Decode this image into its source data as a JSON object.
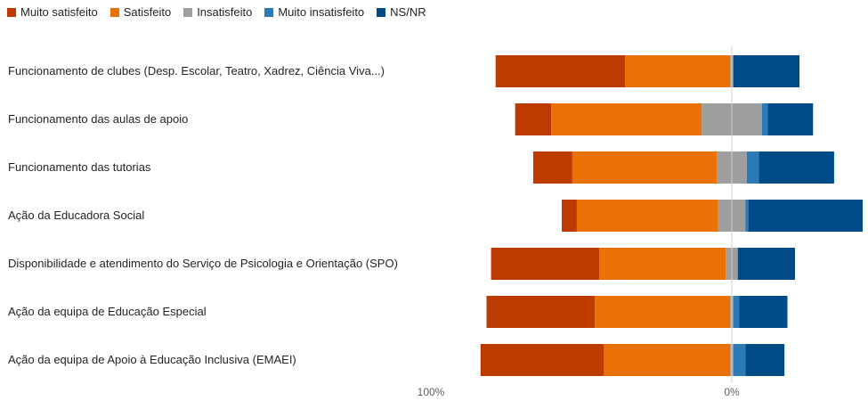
{
  "chart_data": {
    "type": "bar",
    "orientation": "horizontal-diverging-stacked",
    "legend_position": "top-left",
    "grid": false,
    "categories": [
      "Funcionamento de clubes (Desp. Escolar, Teatro, Xadrez, Ciência Viva...)",
      "Funcionamento das aulas de apoio",
      "Funcionamento das tutorias",
      "Ação da Educadora Social",
      "Disponibilidade e atendimento do Serviço de Psicologia e Orientação (SPO)",
      "Ação da equipa de Educação Especial",
      "Ação da equipa de Apoio à Educação Inclusiva (EMAEI)"
    ],
    "series": [
      {
        "name": "Muito satisfeito",
        "color": "#BD3B00",
        "side": "left",
        "values": [
          43,
          12,
          13,
          5,
          36,
          36,
          41
        ]
      },
      {
        "name": "Satisfeito",
        "color": "#EC7105",
        "side": "left",
        "values": [
          35,
          50,
          48,
          47,
          42,
          45,
          42
        ]
      },
      {
        "name": "Insatisfeito",
        "color": "#9E9E9E",
        "side": "center",
        "values": [
          1,
          20,
          10,
          9,
          4,
          1,
          1
        ]
      },
      {
        "name": "Muito insatisfeito",
        "color": "#2A7AB8",
        "side": "right",
        "values": [
          0,
          2,
          4,
          1,
          0,
          2,
          4
        ]
      },
      {
        "name": "NS/NR",
        "color": "#004B87",
        "side": "right",
        "values": [
          22,
          15,
          25,
          38,
          19,
          16,
          13
        ]
      }
    ],
    "x_ticks": [
      "100%",
      "0%"
    ],
    "xlim": [
      -100,
      45
    ]
  }
}
